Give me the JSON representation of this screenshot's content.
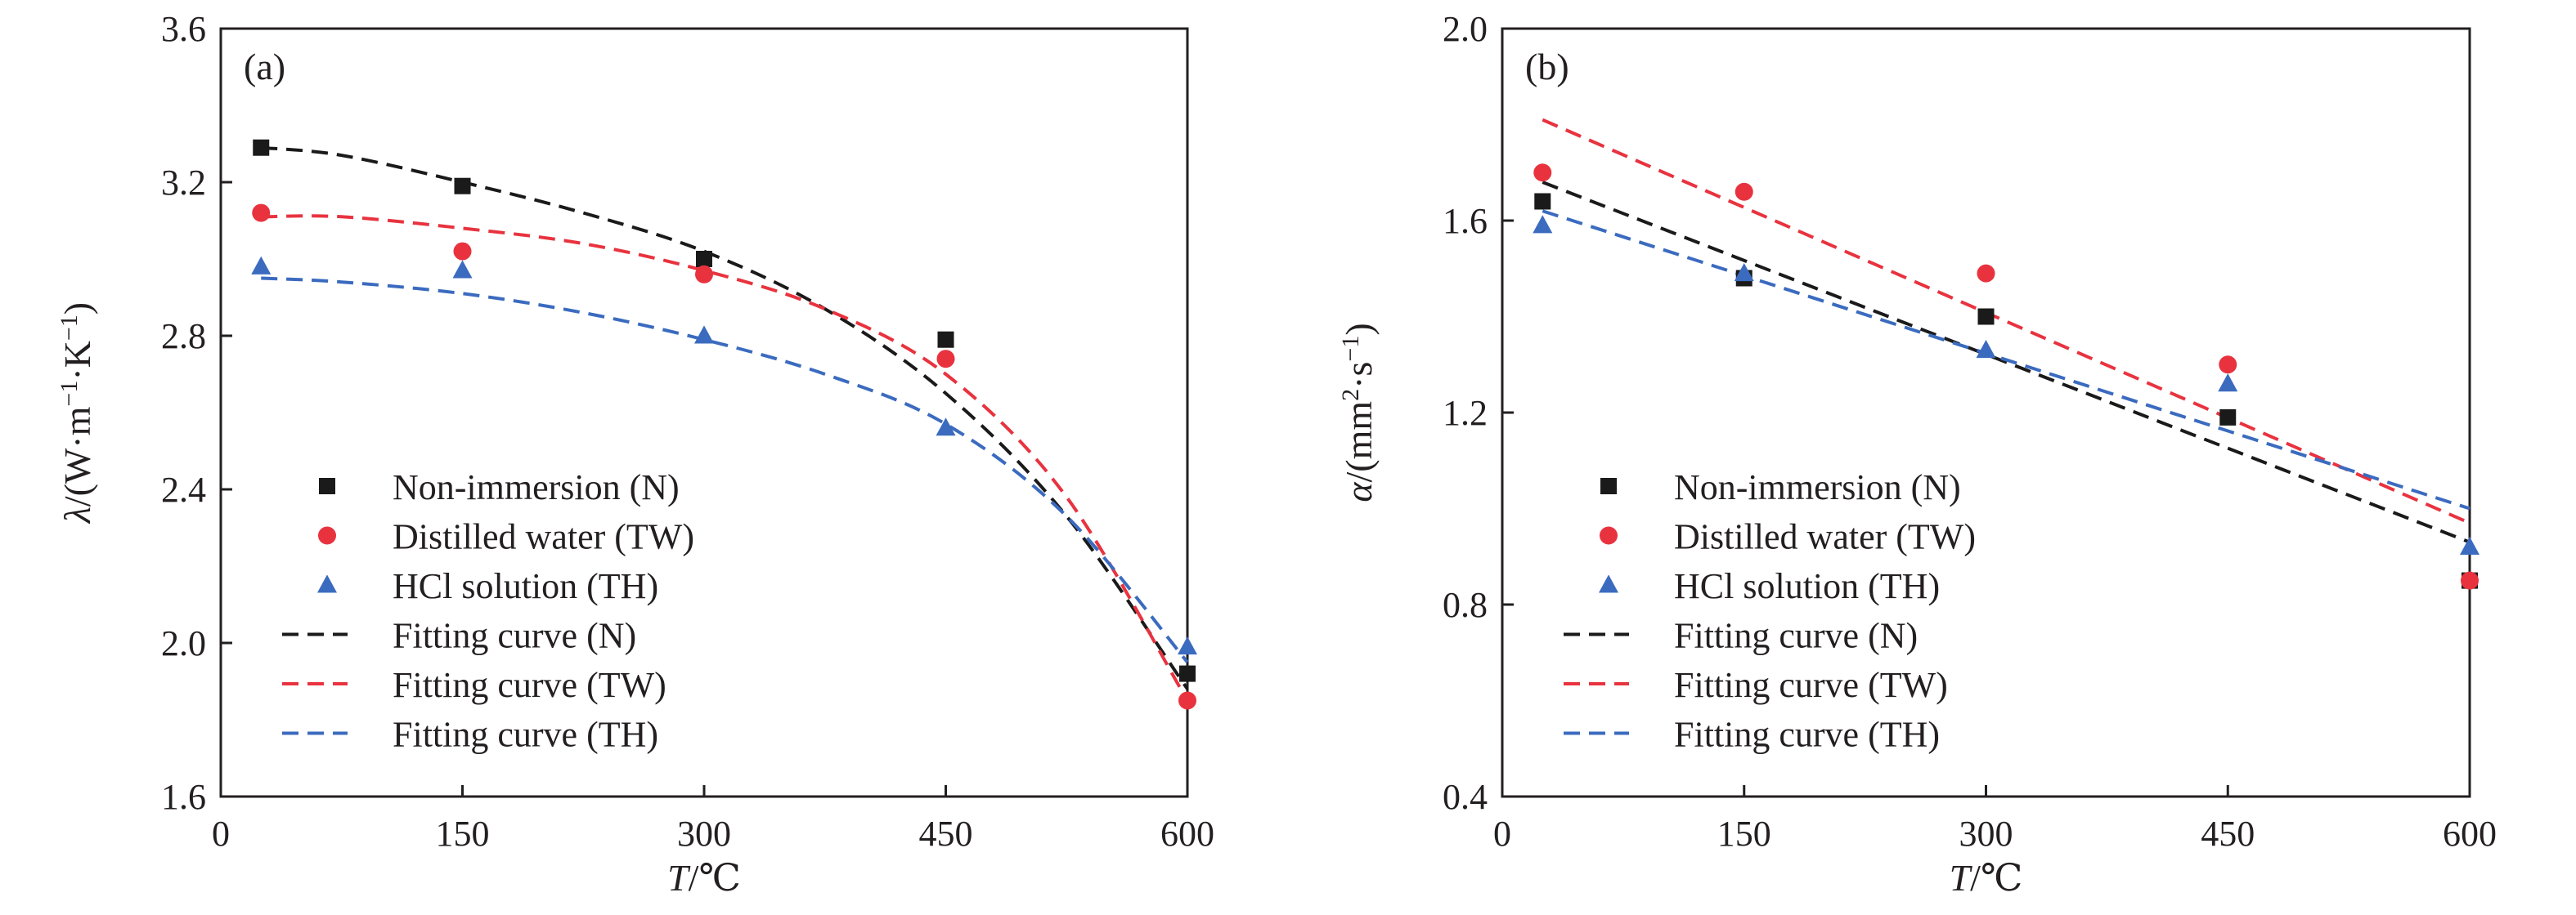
{
  "chart_data": [
    {
      "type": "scatter",
      "panel_label": "(a)",
      "xlabel": {
        "var": "T",
        "unit": "/℃"
      },
      "ylabel": {
        "var": "λ",
        "unit_a": "/(W·m",
        "exp1": "−1",
        "unit_b": "·K",
        "exp2": "−1",
        "close": ")"
      },
      "xlim": [
        0,
        600
      ],
      "ylim": [
        1.6,
        3.6
      ],
      "xticks": [
        "0",
        "150",
        "300",
        "450",
        "600"
      ],
      "yticks": [
        "1.6",
        "2.0",
        "2.4",
        "2.8",
        "3.2",
        "3.6"
      ],
      "legend_position": "lower-left",
      "series": [
        {
          "name": "Non-immersion (N)",
          "kind": "points",
          "marker": "square",
          "color": "#1a1a1a",
          "x": [
            25,
            150,
            300,
            450,
            600
          ],
          "y": [
            3.29,
            3.19,
            3.0,
            2.79,
            1.92
          ]
        },
        {
          "name": "Distilled water (TW)",
          "kind": "points",
          "marker": "circle",
          "color": "#e8333f",
          "x": [
            25,
            150,
            300,
            450,
            600
          ],
          "y": [
            3.12,
            3.02,
            2.96,
            2.74,
            1.85
          ]
        },
        {
          "name": "HCl solution (TH)",
          "kind": "points",
          "marker": "triangle",
          "color": "#3b6bbf",
          "x": [
            25,
            150,
            300,
            450,
            600
          ],
          "y": [
            2.98,
            2.97,
            2.8,
            2.56,
            1.99
          ]
        },
        {
          "name": "Fitting curve (N)",
          "kind": "curve",
          "color": "#1a1a1a",
          "x": [
            25,
            75,
            150,
            225,
            300,
            375,
            450,
            525,
            600
          ],
          "y": [
            3.29,
            3.27,
            3.2,
            3.12,
            3.02,
            2.87,
            2.65,
            2.33,
            1.88
          ]
        },
        {
          "name": "Fitting curve (TW)",
          "kind": "curve",
          "color": "#e8333f",
          "x": [
            25,
            75,
            150,
            225,
            300,
            375,
            450,
            525,
            600
          ],
          "y": [
            3.11,
            3.11,
            3.08,
            3.04,
            2.97,
            2.87,
            2.7,
            2.38,
            1.85
          ]
        },
        {
          "name": "Fitting curve (TH)",
          "kind": "curve",
          "color": "#3b6bbf",
          "x": [
            25,
            75,
            150,
            225,
            300,
            375,
            450,
            525,
            600
          ],
          "y": [
            2.95,
            2.94,
            2.91,
            2.86,
            2.79,
            2.7,
            2.57,
            2.33,
            1.95
          ]
        }
      ]
    },
    {
      "type": "scatter",
      "panel_label": "(b)",
      "xlabel": {
        "var": "T",
        "unit": "/℃"
      },
      "ylabel": {
        "var": "α",
        "unit_a": "/(mm",
        "exp1": "2",
        "unit_b": "·s",
        "exp2": "−1",
        "close": ")"
      },
      "xlim": [
        0,
        600
      ],
      "ylim": [
        0.4,
        2.0
      ],
      "xticks": [
        "0",
        "150",
        "300",
        "450",
        "600"
      ],
      "yticks": [
        "0.4",
        "0.8",
        "1.2",
        "1.6",
        "2.0"
      ],
      "legend_position": "lower-left",
      "series": [
        {
          "name": "Non-immersion (N)",
          "kind": "points",
          "marker": "square",
          "color": "#1a1a1a",
          "x": [
            25,
            150,
            300,
            450,
            600
          ],
          "y": [
            1.64,
            1.48,
            1.4,
            1.19,
            0.85
          ]
        },
        {
          "name": "Distilled water (TW)",
          "kind": "points",
          "marker": "circle",
          "color": "#e8333f",
          "x": [
            25,
            150,
            300,
            450,
            600
          ],
          "y": [
            1.7,
            1.66,
            1.49,
            1.3,
            0.85
          ]
        },
        {
          "name": "HCl solution (TH)",
          "kind": "points",
          "marker": "triangle",
          "color": "#3b6bbf",
          "x": [
            25,
            150,
            300,
            450,
            600
          ],
          "y": [
            1.59,
            1.49,
            1.33,
            1.26,
            0.92
          ]
        },
        {
          "name": "Fitting curve (N)",
          "kind": "curve",
          "color": "#1a1a1a",
          "x": [
            25,
            600
          ],
          "y": [
            1.68,
            0.93
          ]
        },
        {
          "name": "Fitting curve (TW)",
          "kind": "curve",
          "color": "#e8333f",
          "x": [
            25,
            600
          ],
          "y": [
            1.81,
            0.97
          ]
        },
        {
          "name": "Fitting curve (TH)",
          "kind": "curve",
          "color": "#3b6bbf",
          "x": [
            25,
            600
          ],
          "y": [
            1.62,
            1.0
          ]
        }
      ]
    }
  ]
}
